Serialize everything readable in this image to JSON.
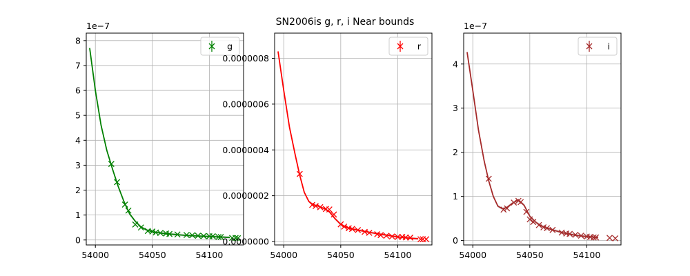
{
  "figure": {
    "title": "SN2006is  g, r, i Near bounds"
  },
  "chart_data": [
    {
      "type": "line",
      "panel": "g",
      "xlim": [
        53992,
        54130
      ],
      "ylim": [
        -2e-08,
        8.3e-07
      ],
      "offset_text": "1e−7",
      "xticks": [
        54000,
        54050,
        54100
      ],
      "xtick_labels": [
        "54000",
        "54050",
        "54100"
      ],
      "yticks": [
        0,
        1e-07,
        2e-07,
        3e-07,
        4e-07,
        5e-07,
        6e-07,
        7e-07,
        8e-07
      ],
      "ytick_labels": [
        "0",
        "1",
        "2",
        "3",
        "4",
        "5",
        "6",
        "7",
        "8"
      ],
      "grid": true,
      "legend": {
        "label": "g",
        "position": "top-right"
      },
      "color": "#008000",
      "model": {
        "x": [
          53995,
          54000,
          54005,
          54010,
          54015,
          54020,
          54025,
          54030,
          54035,
          54040,
          54045,
          54050,
          54060,
          54070,
          54080,
          54090,
          54100,
          54110,
          54118
        ],
        "y": [
          7.7e-07,
          6e-07,
          4.6e-07,
          3.6e-07,
          2.85e-07,
          2.15e-07,
          1.55e-07,
          1.05e-07,
          7.5e-08,
          5.2e-08,
          4e-08,
          3.3e-08,
          2.6e-08,
          2.2e-08,
          1.8e-08,
          1.6e-08,
          1.4e-08,
          1.2e-08,
          1e-08
        ]
      },
      "observations": {
        "x": [
          54014,
          54019,
          54026,
          54029,
          54035,
          54040,
          54046,
          54050,
          54053,
          54057,
          54062,
          54065,
          54072,
          54080,
          54085,
          54090,
          54095,
          54100,
          54103,
          54108,
          54110,
          54120,
          54123,
          54125
        ],
        "y": [
          3.05e-07,
          2.32e-07,
          1.42e-07,
          1.18e-07,
          6.2e-08,
          5e-08,
          3.6e-08,
          3.4e-08,
          3e-08,
          2.8e-08,
          2.6e-08,
          2.4e-08,
          2.2e-08,
          2e-08,
          1.9e-08,
          1.7e-08,
          1.6e-08,
          1.5e-08,
          1.5e-08,
          1.2e-08,
          1.2e-08,
          8e-09,
          8e-09,
          7e-09
        ]
      }
    },
    {
      "type": "line",
      "panel": "r",
      "xlim": [
        53992,
        54130
      ],
      "ylim": [
        -1.5e-08,
        9.1e-07
      ],
      "offset_text": "",
      "xticks": [
        54000,
        54050,
        54100
      ],
      "xtick_labels": [
        "54000",
        "54050",
        "54100"
      ],
      "yticks": [
        0,
        2e-07,
        4e-07,
        6e-07,
        8e-07
      ],
      "ytick_labels": [
        "0.0000000",
        "0.0000002",
        "0.0000004",
        "0.0000006",
        "0.0000008"
      ],
      "grid": true,
      "legend": {
        "label": "r",
        "position": "top-right"
      },
      "color": "#ff0000",
      "model": {
        "x": [
          53995,
          54000,
          54005,
          54010,
          54014,
          54018,
          54022,
          54026,
          54030,
          54035,
          54040,
          54045,
          54050,
          54055,
          54060,
          54070,
          54080,
          54090,
          54100,
          54110,
          54118
        ],
        "y": [
          8.3e-07,
          6.6e-07,
          5e-07,
          3.8e-07,
          2.9e-07,
          2.15e-07,
          1.75e-07,
          1.6e-07,
          1.55e-07,
          1.45e-07,
          1.3e-07,
          1e-07,
          7.5e-08,
          6.2e-08,
          5.5e-08,
          4.5e-08,
          3.6e-08,
          2.8e-08,
          2e-08,
          1.5e-08,
          1.2e-08
        ]
      },
      "observations": {
        "x": [
          54014,
          54025,
          54028,
          54032,
          54037,
          54040,
          54044,
          54050,
          54053,
          54057,
          54060,
          54065,
          54071,
          54075,
          54082,
          54085,
          54090,
          54095,
          54100,
          54104,
          54107,
          54111,
          54120,
          54122,
          54125
        ],
        "y": [
          2.95e-07,
          1.6e-07,
          1.55e-07,
          1.5e-07,
          1.42e-07,
          1.4e-07,
          1.18e-07,
          7.5e-08,
          6.5e-08,
          5.8e-08,
          5.5e-08,
          5e-08,
          4.2e-08,
          3.8e-08,
          3.2e-08,
          2.8e-08,
          2.5e-08,
          2.2e-08,
          2e-08,
          2e-08,
          1.8e-08,
          1.7e-08,
          1e-08,
          1e-08,
          1e-08
        ]
      }
    },
    {
      "type": "line",
      "panel": "i",
      "xlim": [
        53992,
        54130
      ],
      "ylim": [
        -1e-08,
        4.7e-07
      ],
      "offset_text": "1e−7",
      "xticks": [
        54000,
        54050,
        54100
      ],
      "xtick_labels": [
        "54000",
        "54050",
        "54100"
      ],
      "yticks": [
        0,
        1e-07,
        2e-07,
        3e-07,
        4e-07
      ],
      "ytick_labels": [
        "0",
        "1",
        "2",
        "3",
        "4"
      ],
      "grid": true,
      "legend": {
        "label": "i",
        "position": "top-right"
      },
      "color": "#a52a2a",
      "model": {
        "x": [
          53995,
          54000,
          54005,
          54010,
          54014,
          54018,
          54022,
          54026,
          54030,
          54035,
          54040,
          54045,
          54050,
          54055,
          54060,
          54070,
          54080,
          54090,
          54100,
          54110
        ],
        "y": [
          4.27e-07,
          3.4e-07,
          2.5e-07,
          1.8e-07,
          1.35e-07,
          1e-07,
          7.8e-08,
          7.2e-08,
          7.5e-08,
          8.5e-08,
          9.2e-08,
          8e-08,
          5.5e-08,
          4.2e-08,
          3.3e-08,
          2.4e-08,
          1.7e-08,
          1.2e-08,
          9e-09,
          7e-09
        ]
      },
      "observations": {
        "x": [
          54014,
          54027,
          54030,
          54036,
          54040,
          54042,
          54047,
          54050,
          54053,
          54058,
          54062,
          54065,
          54070,
          54078,
          54082,
          54085,
          54090,
          54095,
          54100,
          54103,
          54106,
          54108,
          54120,
          54125
        ],
        "y": [
          1.4e-07,
          7e-08,
          7.3e-08,
          8.6e-08,
          9e-08,
          8.7e-08,
          6.5e-08,
          4.8e-08,
          4.2e-08,
          3.5e-08,
          3e-08,
          2.8e-08,
          2.4e-08,
          1.8e-08,
          1.6e-08,
          1.5e-08,
          1.3e-08,
          1.1e-08,
          9e-09,
          8e-09,
          7e-09,
          7e-09,
          6e-09,
          5e-09
        ]
      }
    }
  ]
}
